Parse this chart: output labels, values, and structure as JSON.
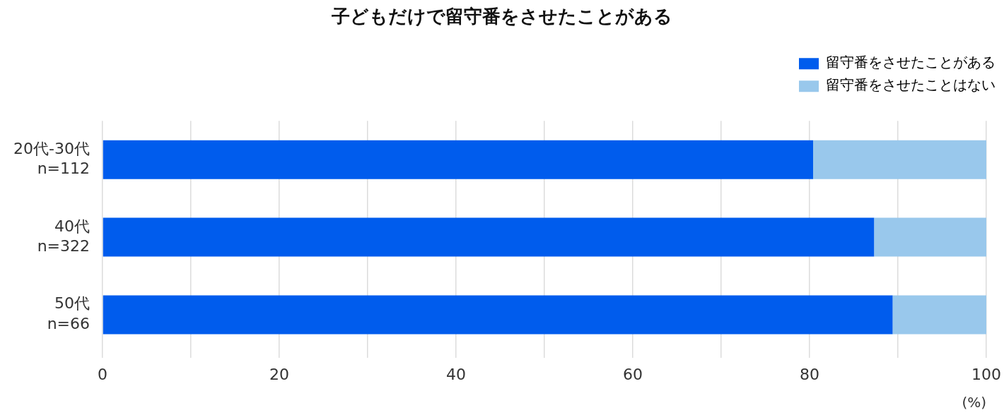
{
  "chart_data": {
    "type": "bar",
    "orientation": "horizontal",
    "stacked": true,
    "title": "子どもだけで留守番をさせたことがある",
    "xlabel": "(%)",
    "categories": [
      "20代-30代\nn=112",
      "40代\nn=322",
      "50代\nn=66"
    ],
    "series": [
      {
        "name": "留守番をさせたことがある",
        "color": "#005ced",
        "values": [
          80.4,
          87.3,
          89.4
        ]
      },
      {
        "name": "留守番をさせたことはない",
        "color": "#99c8ec",
        "values": [
          19.6,
          12.7,
          10.6
        ]
      }
    ],
    "xlim": [
      0,
      100
    ],
    "xticks": [
      0,
      {
        "value": 10,
        "label": null
      },
      20,
      {
        "value": 30,
        "label": null
      },
      40,
      {
        "value": 50,
        "label": null
      },
      60,
      {
        "value": 70,
        "label": null
      },
      80,
      {
        "value": 90,
        "label": null
      },
      100
    ],
    "grid": "x",
    "legend": "top right"
  }
}
